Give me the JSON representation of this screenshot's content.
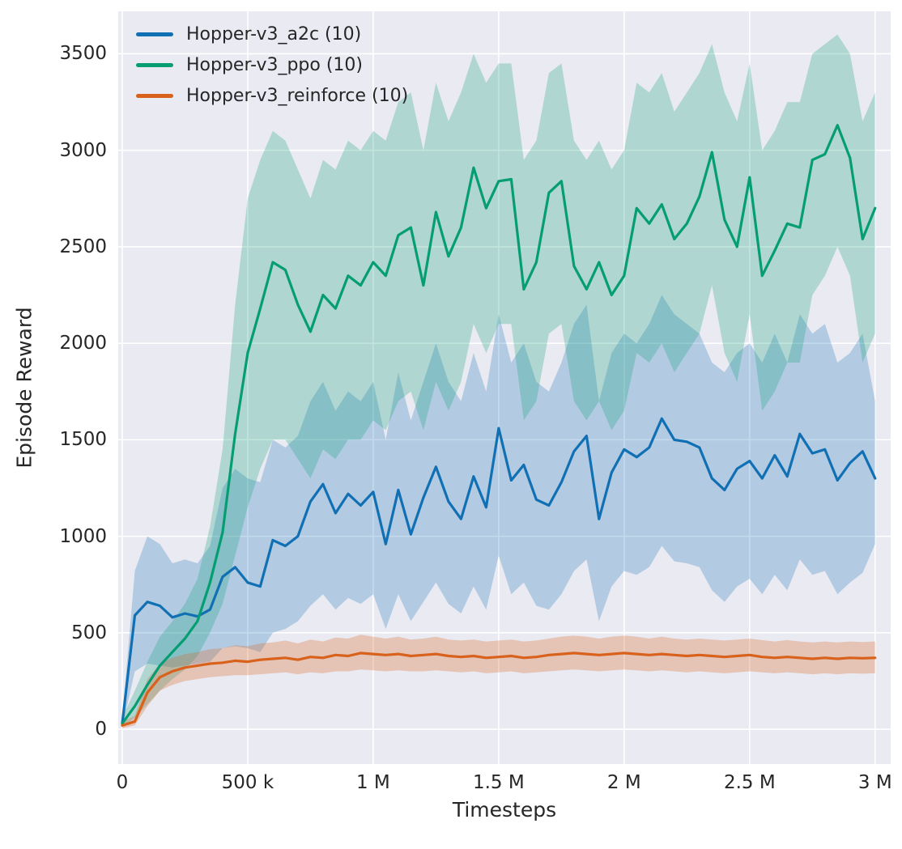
{
  "figure": {
    "background": "#ffffff",
    "axes_background": "#eaeaf2",
    "grid_color": "#ffffff",
    "text_color": "#262626"
  },
  "chart_data": {
    "type": "line",
    "title": "",
    "xlabel": "Timesteps",
    "ylabel": "Episode Reward",
    "grid": true,
    "legend_position": "upper left",
    "xlim": [
      -16000,
      3062000
    ],
    "ylim": [
      -180,
      3720
    ],
    "x_ticks": [
      0,
      500000,
      1000000,
      1500000,
      2000000,
      2500000,
      3000000
    ],
    "x_tick_labels": [
      "0",
      "500 k",
      "1 M",
      "1.5 M",
      "2 M",
      "2.5 M",
      "3 M"
    ],
    "y_ticks": [
      0,
      500,
      1000,
      1500,
      2000,
      2500,
      3000,
      3500
    ],
    "y_tick_labels": [
      "0",
      "500",
      "1000",
      "1500",
      "2000",
      "2500",
      "3000",
      "3500"
    ],
    "x": [
      0,
      50000,
      100000,
      150000,
      200000,
      250000,
      300000,
      350000,
      400000,
      450000,
      500000,
      550000,
      600000,
      650000,
      700000,
      750000,
      800000,
      850000,
      900000,
      950000,
      1000000,
      1050000,
      1100000,
      1150000,
      1200000,
      1250000,
      1300000,
      1350000,
      1400000,
      1450000,
      1500000,
      1550000,
      1600000,
      1650000,
      1700000,
      1750000,
      1800000,
      1850000,
      1900000,
      1950000,
      2000000,
      2050000,
      2100000,
      2150000,
      2200000,
      2250000,
      2300000,
      2350000,
      2400000,
      2450000,
      2500000,
      2550000,
      2600000,
      2650000,
      2700000,
      2750000,
      2800000,
      2850000,
      2900000,
      2950000,
      3000000
    ],
    "series": [
      {
        "id": "a2c",
        "name": "Hopper-v3_a2c (10)",
        "color": "#1170b4",
        "band_alpha": 0.25,
        "mean": [
          30,
          590,
          660,
          640,
          580,
          600,
          585,
          620,
          790,
          840,
          760,
          740,
          980,
          950,
          1000,
          1180,
          1270,
          1120,
          1220,
          1160,
          1230,
          960,
          1240,
          1010,
          1200,
          1360,
          1180,
          1090,
          1310,
          1150,
          1560,
          1290,
          1370,
          1190,
          1160,
          1280,
          1440,
          1520,
          1090,
          1330,
          1450,
          1410,
          1460,
          1610,
          1500,
          1490,
          1460,
          1300,
          1240,
          1350,
          1390,
          1300,
          1420,
          1310,
          1530,
          1430,
          1450,
          1290,
          1380,
          1440,
          1300
        ],
        "low": [
          10,
          300,
          340,
          330,
          320,
          330,
          340,
          350,
          420,
          430,
          420,
          400,
          500,
          520,
          560,
          640,
          700,
          620,
          680,
          650,
          700,
          520,
          700,
          560,
          660,
          760,
          650,
          600,
          740,
          620,
          900,
          700,
          760,
          640,
          620,
          700,
          820,
          880,
          560,
          740,
          820,
          800,
          840,
          950,
          870,
          860,
          840,
          720,
          660,
          740,
          780,
          700,
          800,
          720,
          880,
          800,
          820,
          700,
          760,
          810,
          960
        ],
        "high": [
          60,
          820,
          1000,
          960,
          860,
          880,
          860,
          950,
          1250,
          1350,
          1300,
          1280,
          1500,
          1460,
          1520,
          1700,
          1800,
          1650,
          1750,
          1700,
          1800,
          1500,
          1850,
          1600,
          1800,
          2000,
          1800,
          1700,
          1950,
          1750,
          2150,
          1900,
          2000,
          1800,
          1750,
          1900,
          2100,
          2200,
          1700,
          1950,
          2050,
          2000,
          2100,
          2250,
          2150,
          2100,
          2050,
          1900,
          1850,
          1950,
          2000,
          1900,
          2050,
          1900,
          2150,
          2050,
          2100,
          1900,
          1950,
          2050,
          1700
        ]
      },
      {
        "id": "ppo",
        "name": "Hopper-v3_ppo (10)",
        "color": "#059d72",
        "band_alpha": 0.25,
        "mean": [
          30,
          120,
          230,
          330,
          400,
          470,
          560,
          760,
          1020,
          1530,
          1950,
          2180,
          2420,
          2380,
          2200,
          2060,
          2250,
          2180,
          2350,
          2300,
          2420,
          2350,
          2560,
          2600,
          2300,
          2680,
          2450,
          2600,
          2910,
          2700,
          2840,
          2850,
          2280,
          2420,
          2780,
          2840,
          2400,
          2280,
          2420,
          2250,
          2350,
          2700,
          2620,
          2720,
          2540,
          2620,
          2760,
          2990,
          2640,
          2500,
          2860,
          2350,
          2480,
          2620,
          2600,
          2950,
          2980,
          3130,
          2960,
          2540,
          2700
        ],
        "low": [
          10,
          60,
          130,
          200,
          260,
          310,
          380,
          500,
          650,
          900,
          1150,
          1350,
          1500,
          1500,
          1400,
          1300,
          1450,
          1400,
          1500,
          1500,
          1600,
          1550,
          1700,
          1750,
          1550,
          1800,
          1650,
          1800,
          2100,
          1950,
          2100,
          2100,
          1600,
          1700,
          2050,
          2100,
          1700,
          1600,
          1700,
          1550,
          1650,
          1950,
          1900,
          2000,
          1850,
          1950,
          2050,
          2300,
          1950,
          1800,
          2150,
          1650,
          1750,
          1900,
          1900,
          2250,
          2350,
          2500,
          2350,
          1900,
          2050
        ],
        "high": [
          60,
          200,
          350,
          480,
          560,
          650,
          780,
          1050,
          1450,
          2200,
          2750,
          2950,
          3100,
          3050,
          2900,
          2750,
          2950,
          2900,
          3050,
          3000,
          3100,
          3050,
          3250,
          3300,
          3000,
          3350,
          3150,
          3300,
          3500,
          3350,
          3450,
          3450,
          2950,
          3050,
          3400,
          3450,
          3050,
          2950,
          3050,
          2900,
          3000,
          3350,
          3300,
          3400,
          3200,
          3300,
          3400,
          3550,
          3300,
          3150,
          3450,
          3000,
          3100,
          3250,
          3250,
          3500,
          3550,
          3600,
          3500,
          3150,
          3300
        ]
      },
      {
        "id": "reinforce",
        "name": "Hopper-v3_reinforce (10)",
        "color": "#d8611c",
        "band_alpha": 0.28,
        "mean": [
          20,
          40,
          190,
          270,
          300,
          320,
          330,
          340,
          345,
          355,
          350,
          360,
          365,
          370,
          360,
          375,
          370,
          385,
          380,
          395,
          390,
          385,
          390,
          380,
          385,
          390,
          380,
          375,
          380,
          370,
          375,
          380,
          370,
          375,
          385,
          390,
          395,
          390,
          385,
          390,
          395,
          390,
          385,
          390,
          385,
          380,
          385,
          380,
          375,
          380,
          385,
          375,
          370,
          375,
          370,
          365,
          370,
          365,
          370,
          368,
          370
        ],
        "low": [
          5,
          20,
          120,
          200,
          230,
          250,
          260,
          270,
          275,
          280,
          280,
          285,
          290,
          295,
          285,
          295,
          290,
          300,
          300,
          310,
          305,
          300,
          305,
          300,
          300,
          305,
          300,
          295,
          300,
          290,
          295,
          300,
          290,
          295,
          300,
          305,
          310,
          305,
          300,
          305,
          310,
          305,
          300,
          305,
          300,
          295,
          300,
          295,
          290,
          295,
          300,
          295,
          290,
          295,
          290,
          285,
          290,
          285,
          290,
          288,
          290
        ],
        "high": [
          40,
          70,
          260,
          340,
          370,
          390,
          400,
          415,
          420,
          435,
          430,
          445,
          450,
          460,
          445,
          465,
          455,
          475,
          470,
          490,
          480,
          470,
          480,
          465,
          470,
          480,
          465,
          460,
          465,
          455,
          460,
          465,
          455,
          460,
          470,
          480,
          485,
          480,
          470,
          480,
          485,
          480,
          470,
          480,
          470,
          465,
          470,
          465,
          460,
          465,
          470,
          462,
          455,
          462,
          455,
          450,
          455,
          450,
          455,
          452,
          455
        ]
      }
    ]
  }
}
